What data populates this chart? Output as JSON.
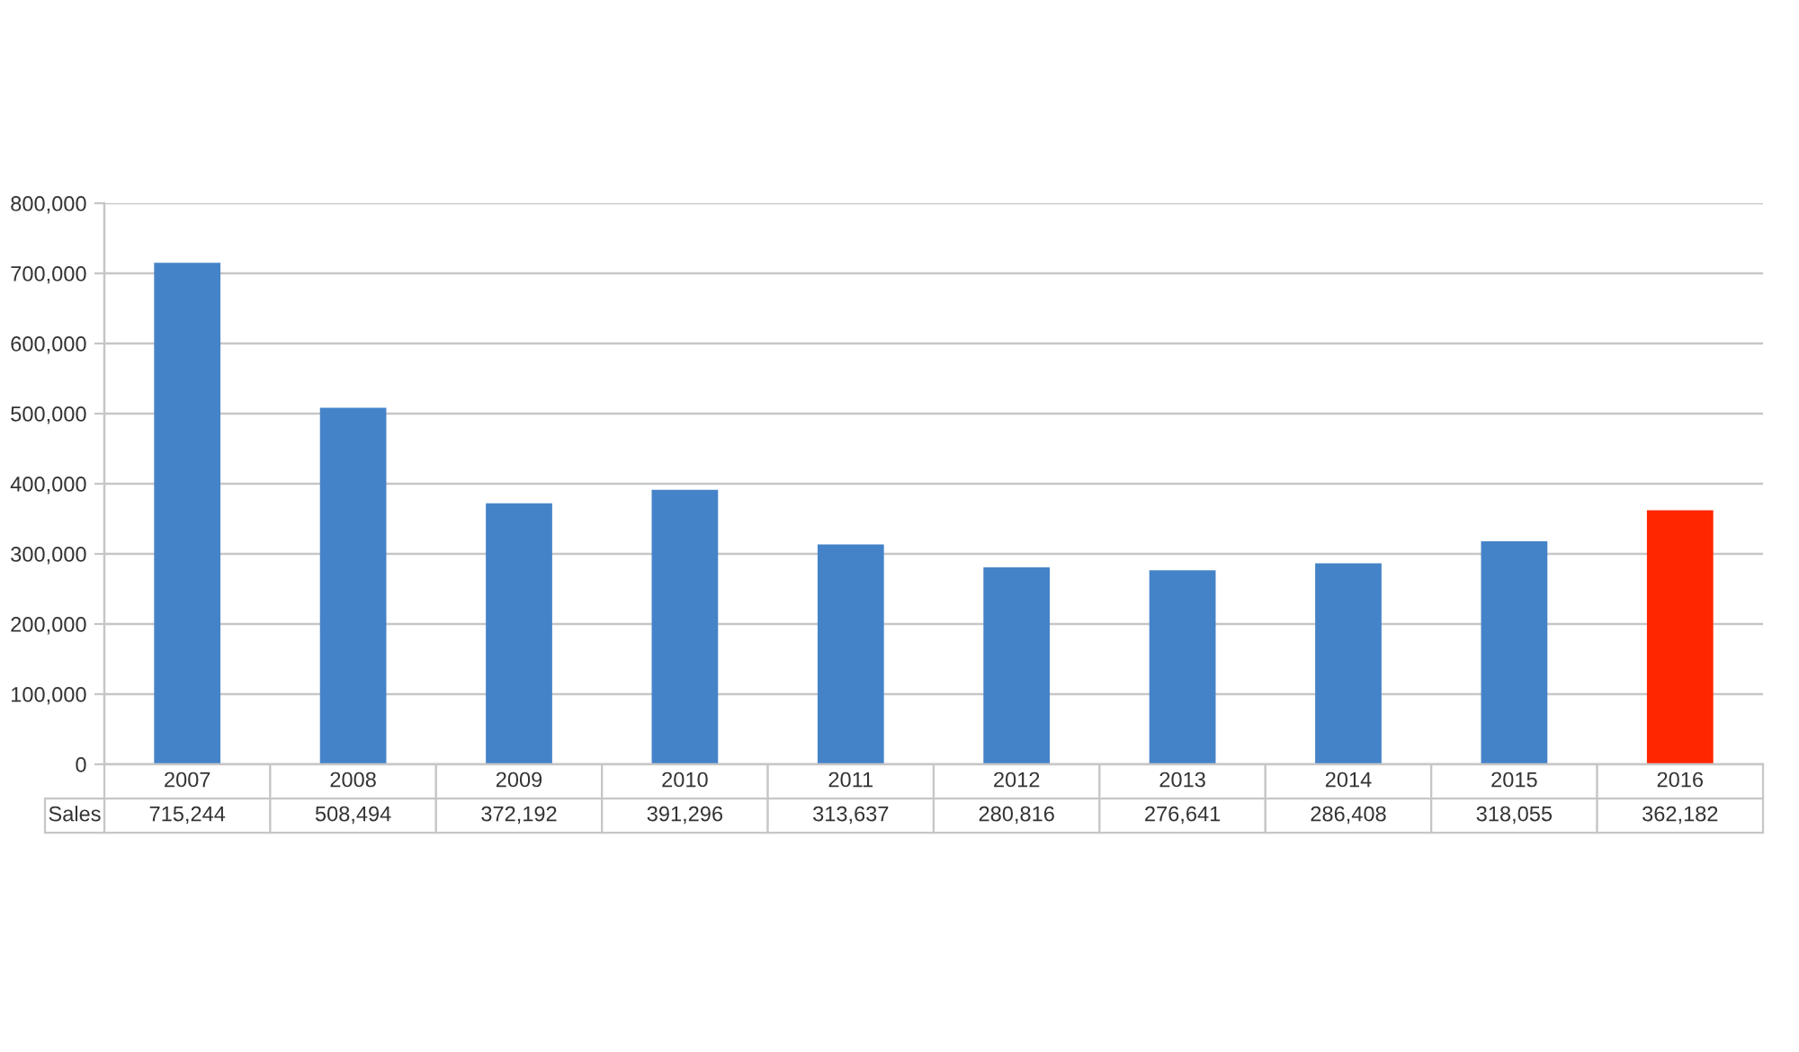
{
  "chart_data": {
    "type": "bar",
    "categories": [
      "2007",
      "2008",
      "2009",
      "2010",
      "2011",
      "2012",
      "2013",
      "2014",
      "2015",
      "2016"
    ],
    "series": [
      {
        "name": "Sales",
        "colors": [
          "#4583c8",
          "#4583c8",
          "#4583c8",
          "#4583c8",
          "#4583c8",
          "#4583c8",
          "#4583c8",
          "#4583c8",
          "#4583c8",
          "#ff2600"
        ],
        "values": [
          715244,
          508494,
          372192,
          391296,
          313637,
          280816,
          276641,
          286408,
          318055,
          362182
        ],
        "value_labels": [
          "715,244",
          "508,494",
          "372,192",
          "391,296",
          "313,637",
          "280,816",
          "276,641",
          "286,408",
          "318,055",
          "362,182"
        ]
      }
    ],
    "ylim": [
      0,
      800000
    ],
    "yticks": [
      {
        "value": 0,
        "label": "0"
      },
      {
        "value": 100000,
        "label": "100,000"
      },
      {
        "value": 200000,
        "label": "200,000"
      },
      {
        "value": 300000,
        "label": "300,000"
      },
      {
        "value": 400000,
        "label": "400,000"
      },
      {
        "value": 500000,
        "label": "500,000"
      },
      {
        "value": 600000,
        "label": "600,000"
      },
      {
        "value": 700000,
        "label": "700,000"
      },
      {
        "value": 800000,
        "label": "800,000"
      }
    ],
    "grid": "y",
    "tick_labels": "y"
  }
}
